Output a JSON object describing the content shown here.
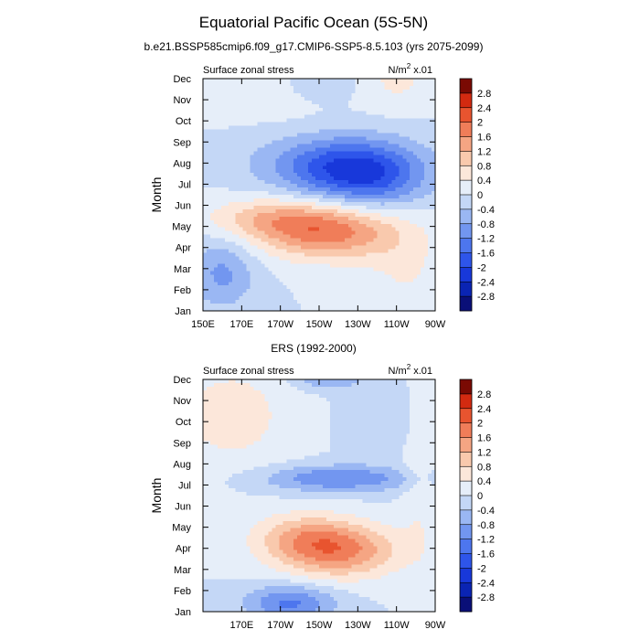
{
  "title": "Equatorial Pacific Ocean (5S-5N)",
  "chart_data": [
    {
      "type": "heatmap",
      "subtitle": "b.e21.BSSP585cmip6.f09_g17.CMIP6-SSP5-8.5.103 (yrs 2075-2099)",
      "left_label": "Surface zonal stress",
      "units_label": "N/m",
      "units_exp": "2",
      "units_scale": " x.01",
      "ylabel": "Month",
      "xlabel": "",
      "x_range": [
        150,
        270
      ],
      "x_ticks": [
        150,
        170,
        190,
        210,
        230,
        250,
        270
      ],
      "x_tick_labels": [
        "150E",
        "170E",
        "170W",
        "150W",
        "130W",
        "110W",
        "90W"
      ],
      "y_tick_labels": [
        "Jan",
        "Feb",
        "Mar",
        "Apr",
        "May",
        "Jun",
        "Jul",
        "Aug",
        "Sep",
        "Oct",
        "Nov",
        "Dec"
      ],
      "features": [
        {
          "lon": 160,
          "month": 1.8,
          "amp": -0.9,
          "slon": 12,
          "smon": 1.2
        },
        {
          "lon": 175,
          "month": 9.0,
          "amp": -0.3,
          "slon": 20,
          "smon": 1.6
        },
        {
          "lon": 225,
          "month": 6.8,
          "amp": -2.1,
          "slon": 26,
          "smon": 1.0
        },
        {
          "lon": 240,
          "month": 5.9,
          "amp": -0.6,
          "slon": 18,
          "smon": 0.9
        },
        {
          "lon": 215,
          "month": 3.7,
          "amp": 1.7,
          "slon": 26,
          "smon": 0.9
        },
        {
          "lon": 185,
          "month": 4.4,
          "amp": 0.9,
          "slon": 24,
          "smon": 0.7
        },
        {
          "lon": 175,
          "month": 10.3,
          "amp": 0.6,
          "slon": 22,
          "smon": 1.4
        },
        {
          "lon": 210,
          "month": 10.9,
          "amp": -0.5,
          "slon": 14,
          "smon": 0.6
        },
        {
          "lon": 250,
          "month": 11.0,
          "amp": 0.5,
          "slon": 14,
          "smon": 1.0
        },
        {
          "lon": 255,
          "month": 1.8,
          "amp": 0.4,
          "slon": 15,
          "smon": 1.5
        }
      ]
    },
    {
      "type": "heatmap",
      "subtitle": "ERS (1992-2000)",
      "left_label": "Surface zonal stress",
      "units_label": "N/m",
      "units_exp": "2",
      "units_scale": " x.01",
      "ylabel": "Month",
      "xlabel": "",
      "x_range": [
        150,
        270
      ],
      "x_ticks": [
        170,
        190,
        210,
        230,
        250,
        270
      ],
      "x_tick_labels": [
        "170E",
        "170W",
        "150W",
        "130W",
        "110W",
        "90W"
      ],
      "y_tick_labels": [
        "Jan",
        "Feb",
        "Mar",
        "Apr",
        "May",
        "Jun",
        "Jul",
        "Aug",
        "Sep",
        "Oct",
        "Nov",
        "Dec"
      ],
      "features": [
        {
          "lon": 220,
          "month": 2.9,
          "amp": 1.7,
          "slon": 22,
          "smon": 0.9
        },
        {
          "lon": 200,
          "month": 3.6,
          "amp": 0.8,
          "slon": 18,
          "smon": 0.8
        },
        {
          "lon": 220,
          "month": 6.3,
          "amp": -1.2,
          "slon": 28,
          "smon": 0.45
        },
        {
          "lon": 195,
          "month": 0.4,
          "amp": -1.3,
          "slon": 16,
          "smon": 0.6
        },
        {
          "lon": 165,
          "month": 9.3,
          "amp": 0.6,
          "slon": 22,
          "smon": 1.8
        },
        {
          "lon": 215,
          "month": 11.0,
          "amp": -0.8,
          "slon": 12,
          "smon": 0.35
        },
        {
          "lon": 240,
          "month": 9.0,
          "amp": -0.4,
          "slon": 12,
          "smon": 1.0
        },
        {
          "lon": 262,
          "month": 6.0,
          "amp": 0.4,
          "slon": 6,
          "smon": 2.5
        }
      ]
    }
  ],
  "colorbar": {
    "levels": [
      -2.8,
      -2.4,
      -2,
      -1.6,
      -1.2,
      -0.8,
      -0.4,
      0,
      0.4,
      0.8,
      1.2,
      1.6,
      2,
      2.4,
      2.8
    ],
    "labels": [
      "-2.8",
      "-2.4",
      "-2",
      "-1.6",
      "-1.2",
      "-0.8",
      "-0.4",
      "0",
      "0.4",
      "0.8",
      "1.2",
      "1.6",
      "2",
      "2.4",
      "2.8"
    ],
    "colors": [
      "#0a0f78",
      "#0a24b3",
      "#1838da",
      "#2e55ea",
      "#4d76ee",
      "#7296f0",
      "#9ab7f3",
      "#c4d7f6",
      "#e6eef9",
      "#fce7da",
      "#f9c9ad",
      "#f5a583",
      "#f07d59",
      "#e8542f",
      "#d32a10",
      "#7a0a03"
    ]
  }
}
